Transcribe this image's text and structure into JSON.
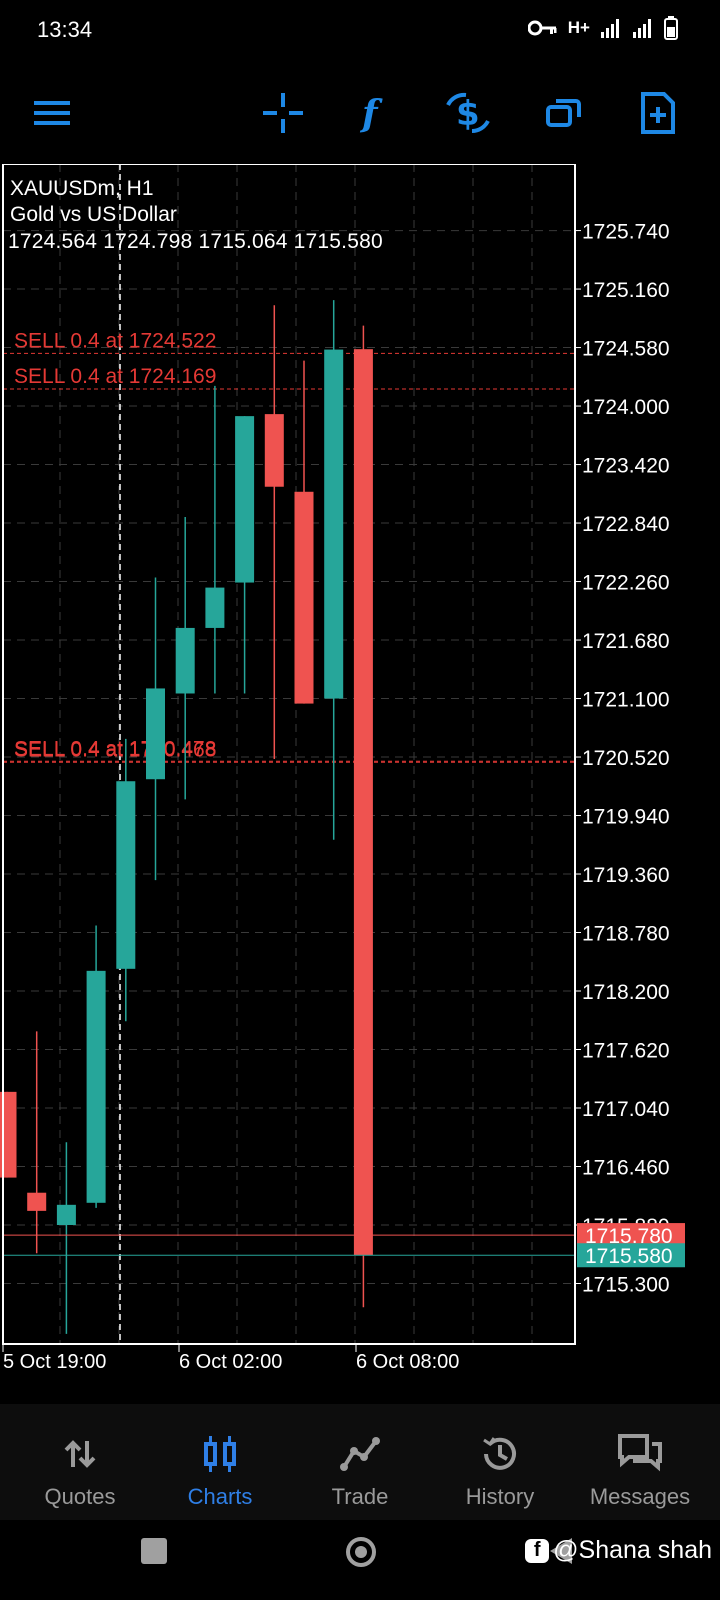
{
  "status": {
    "time": "13:34",
    "network": "H+"
  },
  "chart": {
    "symbol": "XAUUSDm, H1",
    "description": "Gold vs US Dollar",
    "ohlc": "1724.564 1724.798 1715.064 1715.580",
    "price_ticks": [
      "1725.740",
      "1725.160",
      "1724.580",
      "1724.000",
      "1723.420",
      "1722.840",
      "1722.260",
      "1721.680",
      "1721.100",
      "1720.520",
      "1719.940",
      "1719.360",
      "1718.780",
      "1718.200",
      "1717.620",
      "1717.040",
      "1716.460",
      "1715.880",
      "1715.300"
    ],
    "time_ticks": [
      "5 Oct 19:00",
      "6 Oct 02:00",
      "6 Oct 08:00"
    ],
    "orders": [
      {
        "label": "SELL 0.4 at 1724.522",
        "price": 1724.522
      },
      {
        "label": "SELL 0.4 at 1724.169",
        "price": 1724.169
      },
      {
        "label": "SELL 0.4 at 1720.478",
        "price": 1720.478
      },
      {
        "label": "SELL 0.4 at 1720.468",
        "price": 1720.468
      }
    ],
    "ask_price": "1715.780",
    "bid_price": "1715.580",
    "colors": {
      "bull": "#26a69a",
      "bear": "#ef5350",
      "order": "#e53935",
      "grid": "#3a3a3a",
      "frame": "#ffffff"
    }
  },
  "chart_data": {
    "type": "candlestick",
    "ylim": [
      1714.7,
      1726.4
    ],
    "candles": [
      {
        "o": 1717.2,
        "h": 1717.2,
        "l": 1716.35,
        "c": 1716.35
      },
      {
        "o": 1716.2,
        "h": 1717.8,
        "l": 1715.6,
        "c": 1716.02
      },
      {
        "o": 1715.88,
        "h": 1716.7,
        "l": 1714.8,
        "c": 1716.08
      },
      {
        "o": 1716.1,
        "h": 1718.85,
        "l": 1716.05,
        "c": 1718.4
      },
      {
        "o": 1718.42,
        "h": 1720.7,
        "l": 1717.9,
        "c": 1720.28
      },
      {
        "o": 1720.3,
        "h": 1722.3,
        "l": 1719.3,
        "c": 1721.2
      },
      {
        "o": 1721.15,
        "h": 1722.9,
        "l": 1720.1,
        "c": 1721.8
      },
      {
        "o": 1721.8,
        "h": 1724.2,
        "l": 1721.15,
        "c": 1722.2
      },
      {
        "o": 1722.25,
        "h": 1723.9,
        "l": 1721.15,
        "c": 1723.9
      },
      {
        "o": 1723.92,
        "h": 1725.0,
        "l": 1720.5,
        "c": 1723.2
      },
      {
        "o": 1723.15,
        "h": 1724.45,
        "l": 1721.05,
        "c": 1721.05
      },
      {
        "o": 1721.1,
        "h": 1725.05,
        "l": 1719.7,
        "c": 1724.56
      },
      {
        "o": 1724.564,
        "h": 1724.798,
        "l": 1715.064,
        "c": 1715.58
      }
    ]
  },
  "toolbar": {
    "icons": [
      "menu-icon",
      "crosshair-icon",
      "indicators-icon",
      "one-click-trading-icon",
      "timeframes-icon",
      "new-order-icon"
    ]
  },
  "nav": {
    "items": [
      {
        "label": "Quotes",
        "icon": "quotes-icon"
      },
      {
        "label": "Charts",
        "icon": "charts-icon"
      },
      {
        "label": "Trade",
        "icon": "trade-icon"
      },
      {
        "label": "History",
        "icon": "history-icon"
      },
      {
        "label": "Messages",
        "icon": "messages-icon"
      }
    ]
  },
  "watermark": {
    "text": "@Shana shah"
  }
}
